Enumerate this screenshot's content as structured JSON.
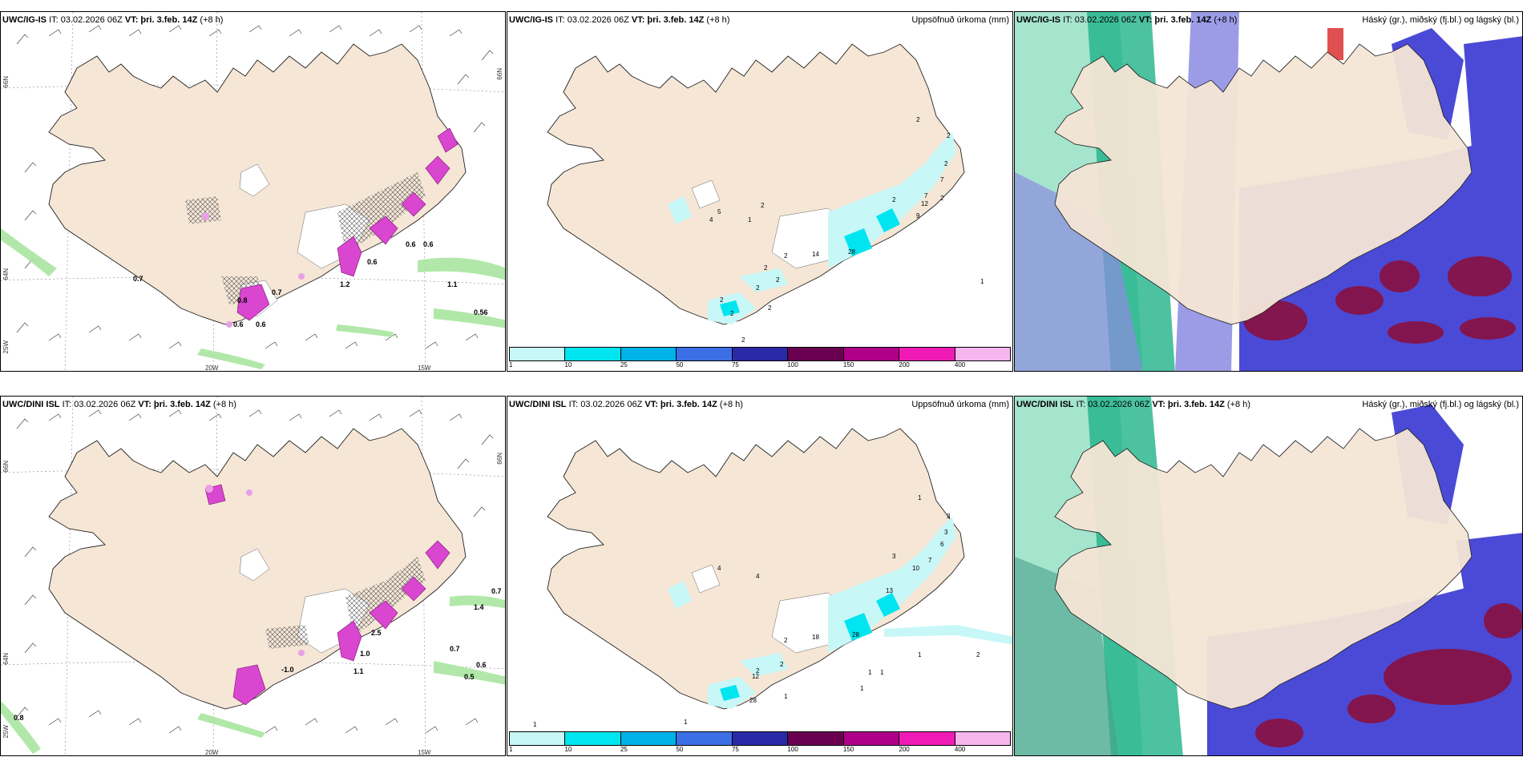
{
  "rows": [
    {
      "panels": [
        {
          "model": "UWC/IG-IS",
          "info": "IT: 03.02.2026 06Z",
          "vt_label": "VT:",
          "vt": "þri. 3.feb. 14Z",
          "lead": "(+8 h)",
          "right_title": ""
        },
        {
          "model": "UWC/IG-IS",
          "info": "IT: 03.02.2026 06Z",
          "vt_label": "VT:",
          "vt": "þri. 3.feb. 14Z",
          "lead": "(+8 h)",
          "right_title": "Uppsöfnuð úrkoma (mm)"
        },
        {
          "model": "UWC/IG-IS",
          "info": "IT: 03.02.2026 06Z",
          "vt_label": "VT:",
          "vt": "þri. 3.feb. 14Z",
          "lead": "(+8 h)",
          "right_title": "Háský (gr.), miðský (fj.bl.) og lágský (bl.)"
        }
      ]
    },
    {
      "panels": [
        {
          "model": "UWC/DINI ISL",
          "info": "IT: 03.02.2026 06Z",
          "vt_label": "VT:",
          "vt": "þri. 3.feb. 14Z",
          "lead": "(+8 h)",
          "right_title": ""
        },
        {
          "model": "UWC/DINI ISL",
          "info": "IT: 03.02.2026 06Z",
          "vt_label": "VT:",
          "vt": "þri. 3.feb. 14Z",
          "lead": "(+8 h)",
          "right_title": "Uppsöfnuð úrkoma (mm)"
        },
        {
          "model": "UWC/DINI ISL",
          "info": "IT: 03.02.2026 06Z",
          "vt_label": "VT:",
          "vt": "þri. 3.feb. 14Z",
          "lead": "(+8 h)",
          "right_title": "Háský (gr.), miðský (fj.bl.) og lágský (bl.)"
        }
      ]
    }
  ],
  "coords": {
    "lat66": "66N",
    "lat64": "64N",
    "lon25": "25W",
    "lon20": "20W",
    "lon15": "15W"
  },
  "legend": {
    "ticks": [
      "1",
      "10",
      "25",
      "50",
      "75",
      "100",
      "150",
      "200",
      "400"
    ],
    "colors": [
      "#c8f7f7",
      "#00e5ef",
      "#00b2e8",
      "#3c6ee6",
      "#2a2aa8",
      "#6a0050",
      "#b0008a",
      "#f01bb6",
      "#f5b6ee"
    ]
  },
  "colors": {
    "land": "#f5e6d6",
    "snow_free": "#ffffff",
    "precip_green": "#a8e6a0",
    "precip_magenta": "#d946d0",
    "cloud_high": "#1fb38a",
    "cloud_mid": "#4a4ad6",
    "cloud_low": "#8a1040"
  },
  "top_wind": {
    "labels": [
      "0.7",
      "0.7",
      "0.8",
      "0.6",
      "0.6",
      "0.6",
      "1.2",
      "0.6",
      "1.1",
      "0.6",
      "0.56"
    ]
  },
  "bottom_wind": {
    "labels": [
      "0.8",
      "-1.0",
      "2.5",
      "1.0",
      "1.1",
      "0.7",
      "1.4",
      "0.6",
      "0.5",
      "0.7"
    ]
  },
  "top_precip": {
    "labels": [
      "2",
      "2",
      "2",
      "7",
      "9",
      "12",
      "7",
      "2",
      "2",
      "4",
      "5",
      "2",
      "1",
      "2",
      "14",
      "2",
      "2",
      "2",
      "28",
      "2",
      "2",
      "1",
      "2",
      "2"
    ]
  },
  "bottom_precip": {
    "labels": [
      "1",
      "3",
      "3",
      "6",
      "7",
      "10",
      "3",
      "13",
      "4",
      "4",
      "2",
      "18",
      "28",
      "2",
      "2",
      "12",
      "28",
      "1",
      "1",
      "1",
      "1",
      "1",
      "2",
      "1",
      "1"
    ]
  }
}
